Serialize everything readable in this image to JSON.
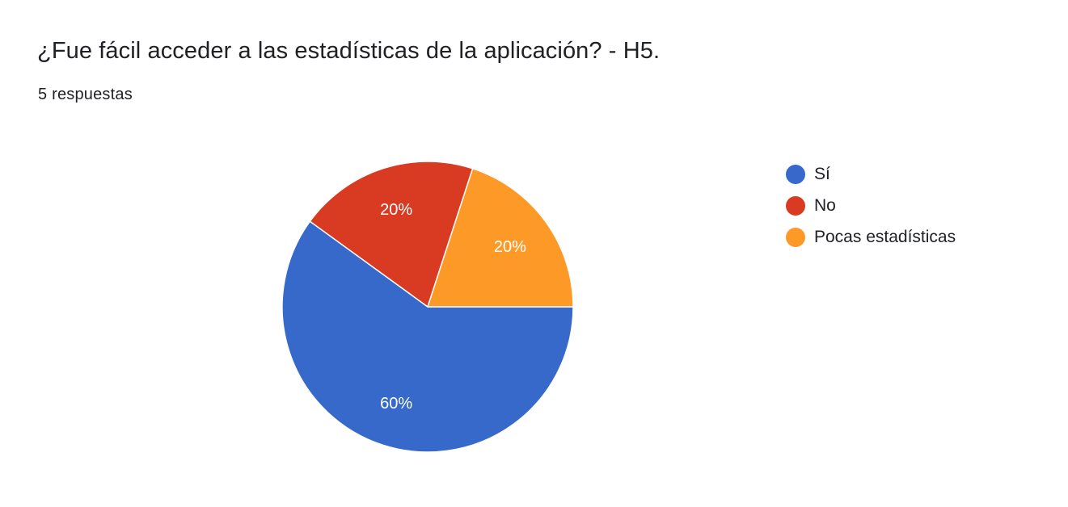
{
  "form": {
    "question_title": "¿Fue fácil acceder a las estadísticas de la aplicación? - H5.",
    "response_count": "5 respuestas"
  },
  "chart_data": {
    "type": "pie",
    "categories": [
      "Sí",
      "No",
      "Pocas estadísticas"
    ],
    "values": [
      60,
      20,
      20
    ],
    "labels": [
      "60%",
      "20%",
      "20%"
    ],
    "colors": [
      "#3769cb",
      "#d93b22",
      "#fd9927"
    ],
    "title": "¿Fue fácil acceder a las estadísticas de la aplicación? - H5.",
    "subtitle": "5 respuestas",
    "legend": "right"
  }
}
